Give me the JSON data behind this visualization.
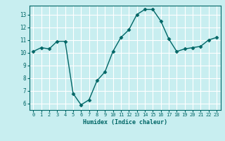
{
  "x": [
    0,
    1,
    2,
    3,
    4,
    5,
    6,
    7,
    8,
    9,
    10,
    11,
    12,
    13,
    14,
    15,
    16,
    17,
    18,
    19,
    20,
    21,
    22,
    23
  ],
  "y": [
    10.1,
    10.4,
    10.3,
    10.9,
    10.9,
    6.8,
    5.9,
    6.3,
    7.8,
    8.5,
    10.1,
    11.2,
    11.8,
    13.0,
    13.4,
    13.4,
    12.5,
    11.1,
    10.1,
    10.3,
    10.4,
    10.5,
    11.0,
    11.2
  ],
  "xlabel": "Humidex (Indice chaleur)",
  "xlim": [
    -0.5,
    23.5
  ],
  "ylim": [
    5.5,
    13.7
  ],
  "yticks": [
    6,
    7,
    8,
    9,
    10,
    11,
    12,
    13
  ],
  "xticks": [
    0,
    1,
    2,
    3,
    4,
    5,
    6,
    7,
    8,
    9,
    10,
    11,
    12,
    13,
    14,
    15,
    16,
    17,
    18,
    19,
    20,
    21,
    22,
    23
  ],
  "line_color": "#006666",
  "marker_color": "#006666",
  "bg_color": "#c8eef0",
  "grid_color": "#ffffff",
  "tick_label_color": "#006666",
  "axis_color": "#006666"
}
